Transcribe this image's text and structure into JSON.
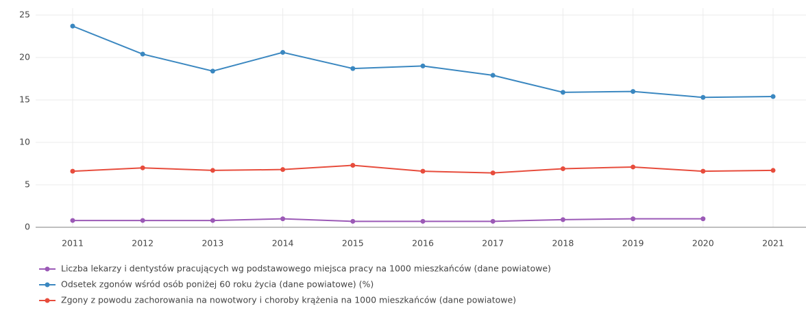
{
  "chart_data": {
    "type": "line",
    "categories": [
      "2011",
      "2012",
      "2013",
      "2014",
      "2015",
      "2016",
      "2017",
      "2018",
      "2019",
      "2020",
      "2021"
    ],
    "series": [
      {
        "name": "Liczba lekarzy i dentystów pracujących wg podstawowego miejsca pracy na 1000 mieszkańców (dane powiatowe)",
        "color": "#9b59b6",
        "values": [
          0.8,
          0.8,
          0.8,
          1.0,
          0.7,
          0.7,
          0.7,
          0.9,
          1.0,
          1.0,
          null
        ]
      },
      {
        "name": "Odsetek zgonów wśród osób poniżej 60 roku życia (dane powiatowe) (%)",
        "color": "#3a87c0",
        "values": [
          23.7,
          20.4,
          18.4,
          20.6,
          18.7,
          19.0,
          17.9,
          15.9,
          16.0,
          15.3,
          15.4
        ]
      },
      {
        "name": "Zgony z powodu zachorowania na nowotwory i choroby krążenia na 1000 mieszkańców (dane powiatowe)",
        "color": "#e74c3c",
        "values": [
          6.6,
          7.0,
          6.7,
          6.8,
          7.3,
          6.6,
          6.4,
          6.9,
          7.1,
          6.6,
          6.7
        ]
      }
    ],
    "ylim": [
      0,
      25
    ],
    "yticks": [
      0,
      5,
      10,
      15,
      20,
      25
    ],
    "grid": true
  }
}
